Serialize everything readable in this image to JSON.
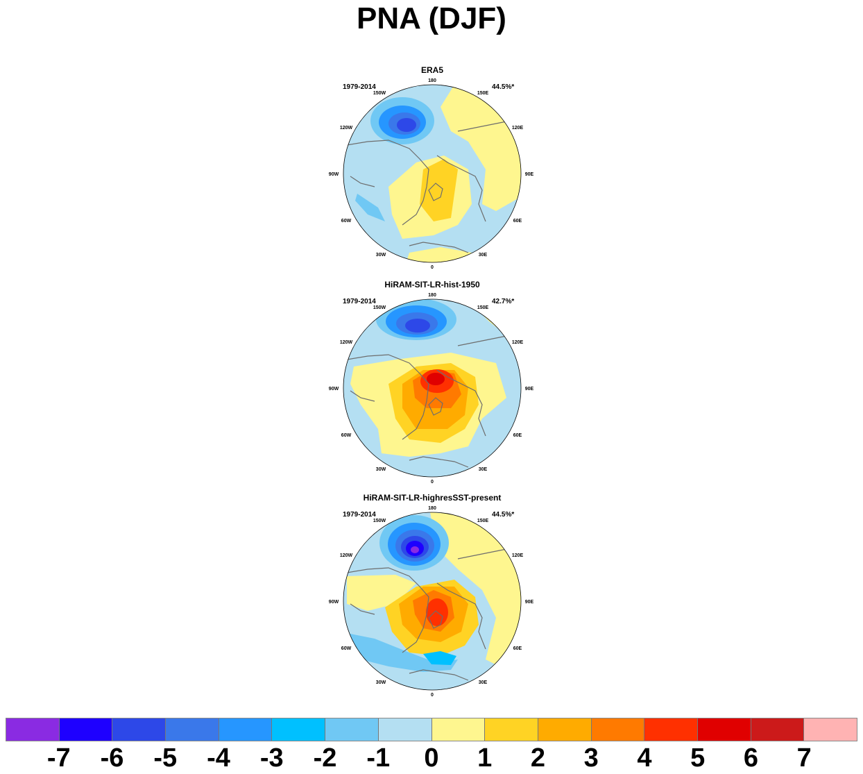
{
  "title": "PNA (DJF)",
  "panels": [
    {
      "title": "ERA5",
      "period": "1979-2014",
      "percent": "44.5%*"
    },
    {
      "title": "HiRAM-SIT-LR-hist-1950",
      "period": "1979-2014",
      "percent": "42.7%*"
    },
    {
      "title": "HiRAM-SIT-LR-highresSST-present",
      "period": "1979-2014",
      "percent": "44.5%*"
    }
  ],
  "longitude_labels": [
    "180",
    "150E",
    "120E",
    "90E",
    "60E",
    "30E",
    "0",
    "30W",
    "60W",
    "90W",
    "120W",
    "150W"
  ],
  "colorbar": {
    "colors": [
      "#8a2be2",
      "#1e00ff",
      "#2d48e8",
      "#3a78ea",
      "#2696ff",
      "#00c0ff",
      "#70c8f4",
      "#b4dff2",
      "#fef68f",
      "#ffd324",
      "#ffab00",
      "#ff7a00",
      "#ff3000",
      "#e00000",
      "#cc1a1a",
      "#ffb3b3"
    ],
    "labels": [
      "-7",
      "-6",
      "-5",
      "-4",
      "-3",
      "-2",
      "-1",
      "0",
      "1",
      "2",
      "3",
      "4",
      "5",
      "6",
      "7"
    ]
  }
}
